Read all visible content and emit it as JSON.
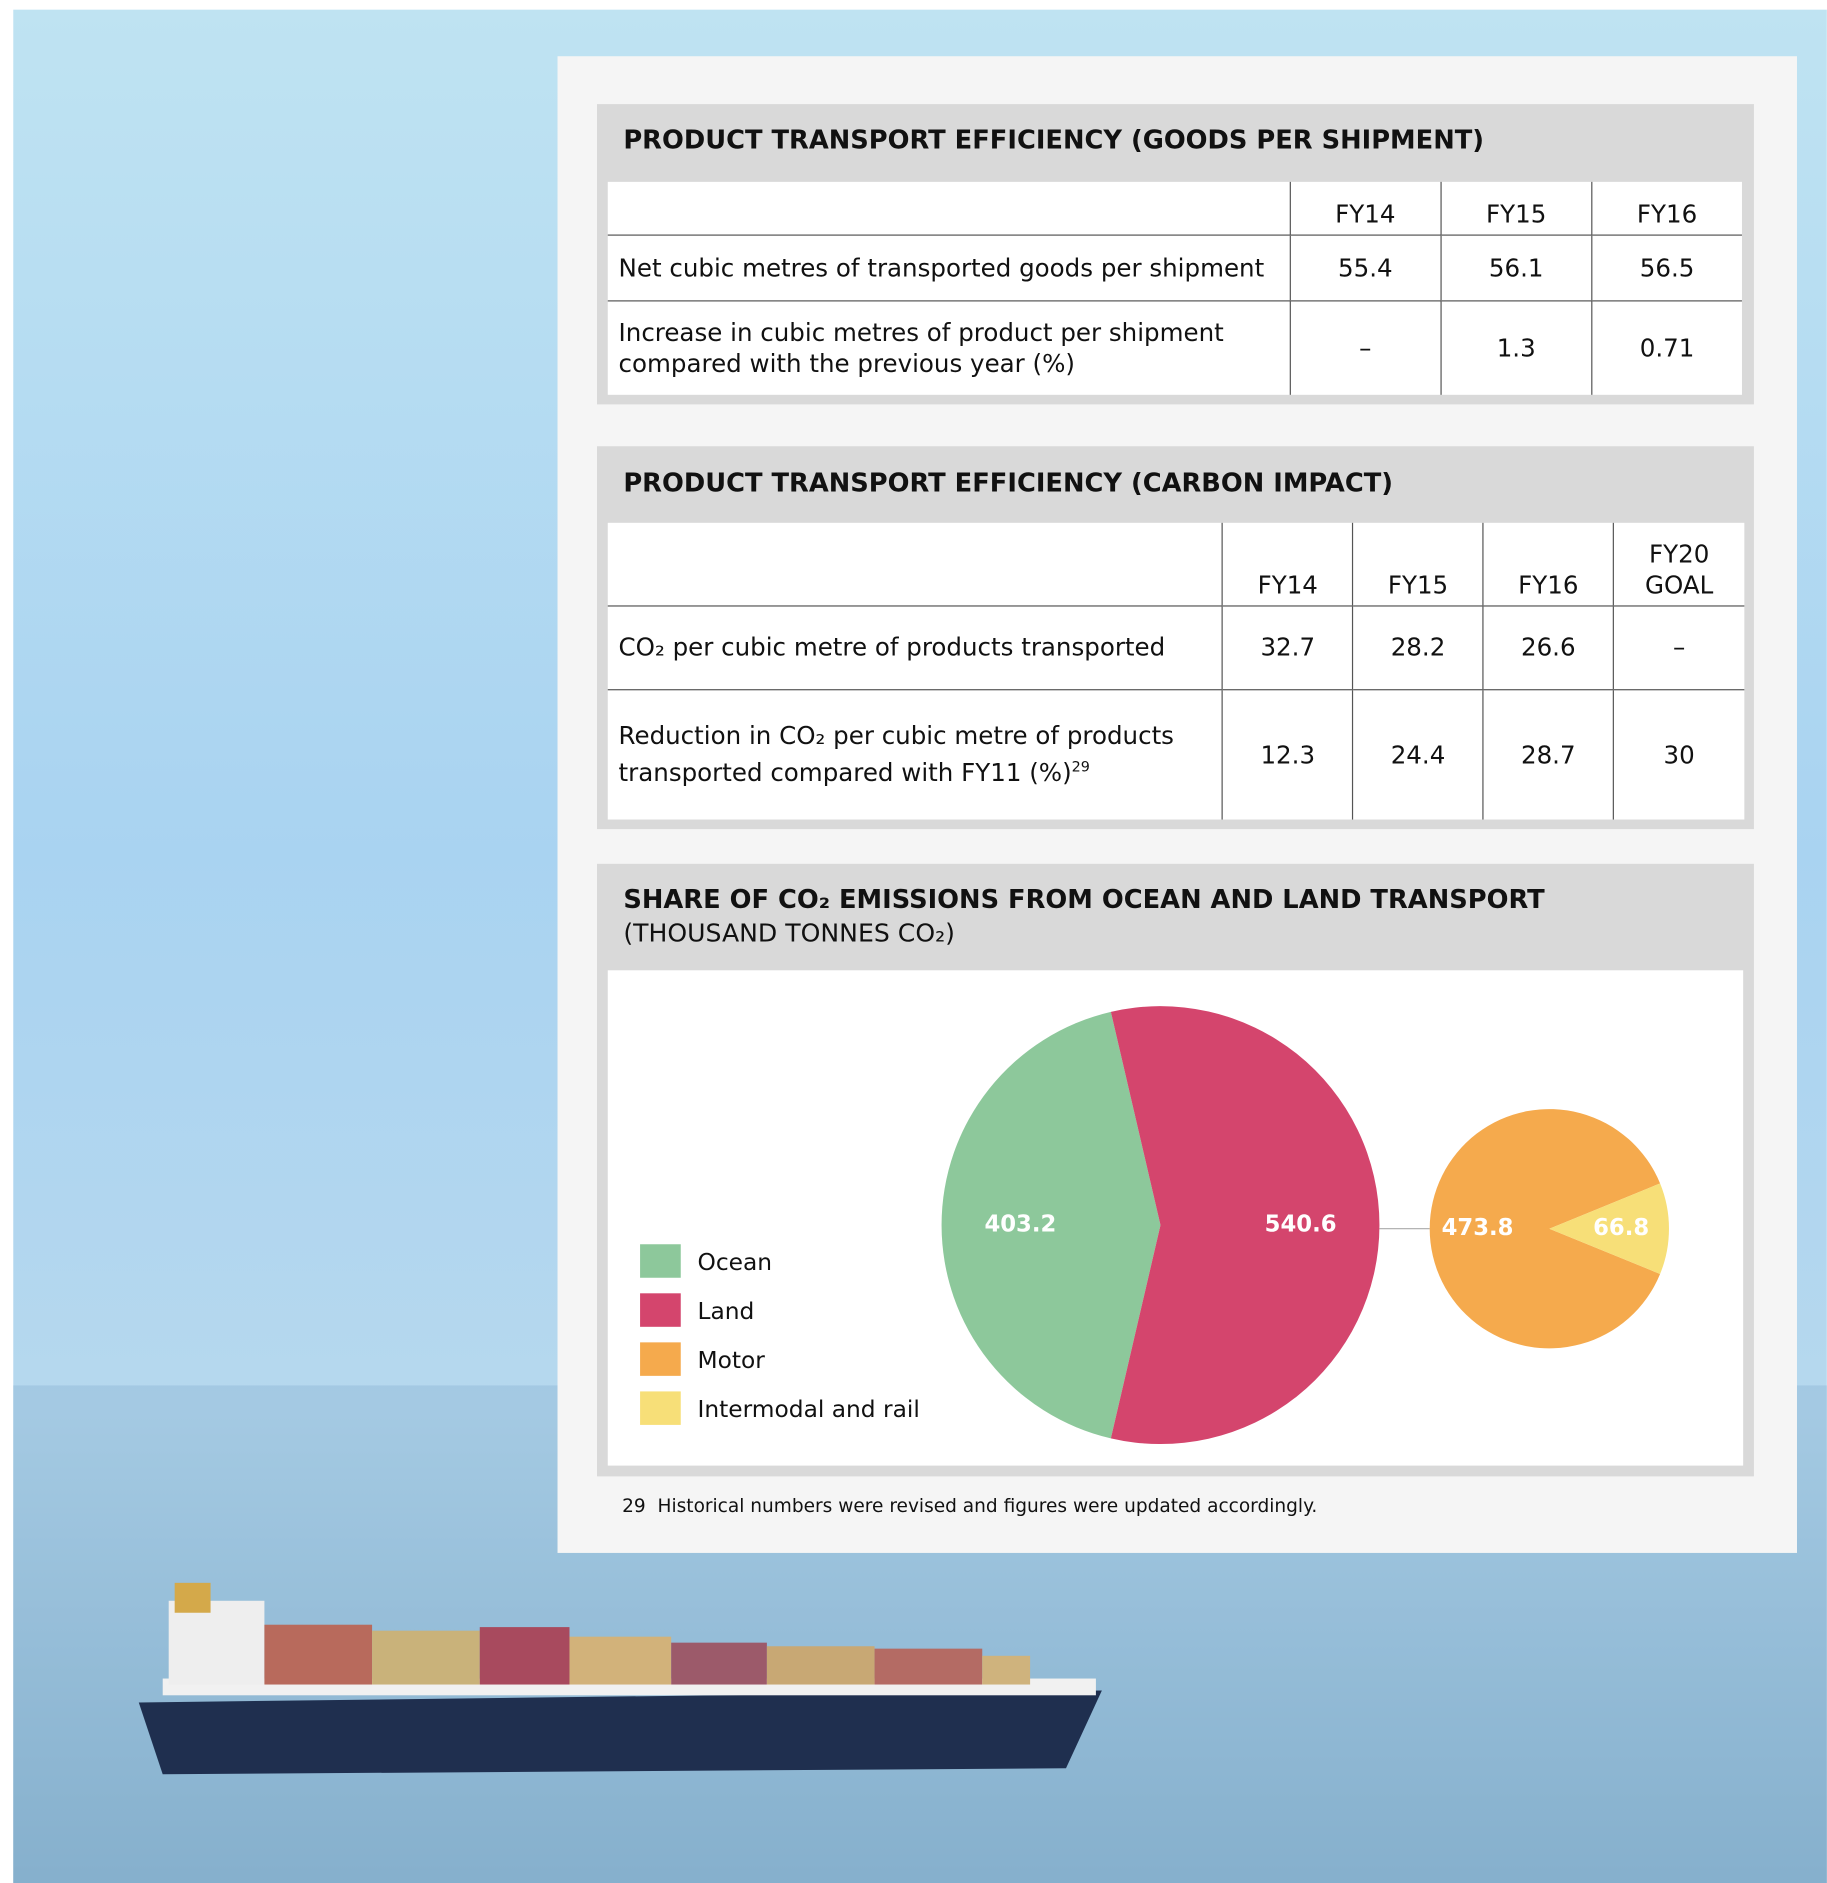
{
  "tables": [
    {
      "title": "PRODUCT TRANSPORT EFFICIENCY (GOODS PER SHIPMENT)",
      "columns": [
        "FY14",
        "FY15",
        "FY16"
      ],
      "rows": [
        {
          "label": "Net cubic metres of transported goods per shipment",
          "values": [
            55.4,
            56.1,
            56.5
          ]
        },
        {
          "label": "Increase in cubic metres of product per shipment compared with the previous year (%)",
          "values": [
            "–",
            1.3,
            0.71
          ]
        }
      ]
    },
    {
      "title": "PRODUCT TRANSPORT EFFICIENCY (CARBON IMPACT)",
      "columns": [
        "FY14",
        "FY15",
        "FY16",
        "FY20 GOAL"
      ],
      "rows": [
        {
          "label": "CO₂ per cubic metre of products transported",
          "values": [
            32.7,
            28.2,
            26.6,
            "–"
          ]
        },
        {
          "label": "Reduction in CO₂ per cubic metre of products transported compared with FY11 (%)",
          "footnote_ref": "29",
          "values": [
            12.3,
            24.4,
            28.7,
            30
          ]
        }
      ]
    }
  ],
  "chart_data": {
    "type": "pie-of-pie",
    "title": "SHARE OF CO₂ EMISSIONS FROM OCEAN AND LAND TRANSPORT",
    "subtitle": "(THOUSAND TONNES CO₂)",
    "categories": [
      "Ocean",
      "Land"
    ],
    "values": [
      403.2,
      540.6
    ],
    "colors": [
      "#8dc89b",
      "#d4456d"
    ],
    "sub_categories": [
      "Motor",
      "Intermodal and rail"
    ],
    "sub_values": [
      473.8,
      66.8
    ],
    "sub_colors": [
      "#f5aa4d",
      "#f7df78"
    ]
  },
  "footnote": {
    "number": "29",
    "text": "Historical numbers were revised and figures were updated accordingly."
  }
}
